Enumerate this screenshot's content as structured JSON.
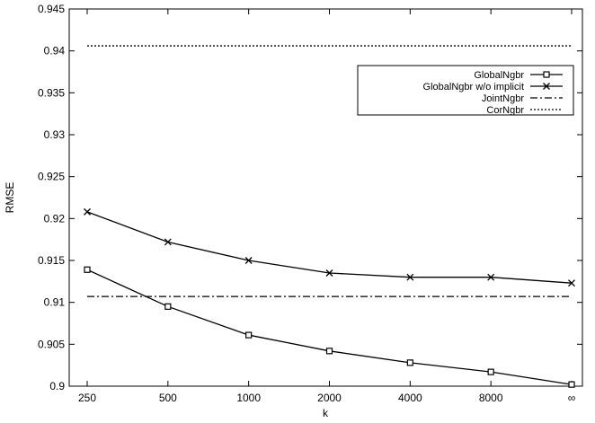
{
  "chart_data": {
    "type": "line",
    "xlabel": "k",
    "ylabel": "RMSE",
    "categories": [
      "250",
      "500",
      "1000",
      "2000",
      "4000",
      "8000",
      "∞"
    ],
    "ylim": [
      0.9,
      0.945
    ],
    "yticks": [
      "0.9",
      "0.905",
      "0.91",
      "0.915",
      "0.92",
      "0.925",
      "0.93",
      "0.935",
      "0.94",
      "0.945"
    ],
    "grid": false,
    "legend_position": "top-right",
    "series": [
      {
        "name": "GlobalNgbr",
        "marker": "square",
        "dash": "solid",
        "values": [
          0.9139,
          0.9095,
          0.9061,
          0.9042,
          0.9028,
          0.9017,
          0.9002
        ]
      },
      {
        "name": "GlobalNgbr w/o implicit",
        "marker": "cross",
        "dash": "solid",
        "values": [
          0.9208,
          0.9172,
          0.915,
          0.9135,
          0.913,
          0.913,
          0.9123
        ]
      },
      {
        "name": "JointNgbr",
        "marker": "none",
        "dash": "dash-dot",
        "values": [
          0.9107,
          0.9107,
          0.9107,
          0.9107,
          0.9107,
          0.9107,
          0.9107
        ]
      },
      {
        "name": "CorNgbr",
        "marker": "none",
        "dash": "dotted",
        "values": [
          0.9406,
          0.9406,
          0.9406,
          0.9406,
          0.9406,
          0.9406,
          0.9406
        ]
      }
    ]
  }
}
